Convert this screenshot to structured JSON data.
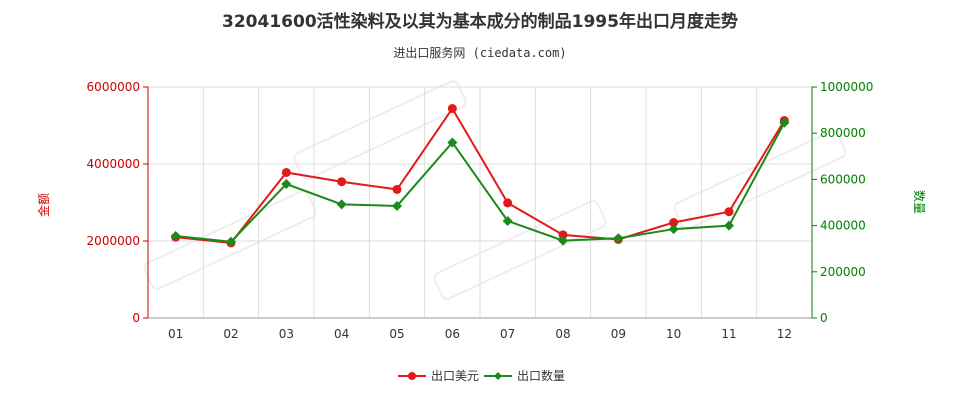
{
  "chart_data": {
    "type": "line",
    "title": "32041600活性染料及以其为基本成分的制品1995年出口月度走势",
    "subtitle": "进出口服务网 (ciedata.com)",
    "categories": [
      "01",
      "02",
      "03",
      "04",
      "05",
      "06",
      "07",
      "08",
      "09",
      "10",
      "11",
      "12"
    ],
    "y_left": {
      "label": "金额",
      "range": [
        0,
        6000000
      ],
      "ticks": [
        "0",
        "2000000",
        "4000000",
        "6000000"
      ]
    },
    "y_right": {
      "label": "数量",
      "range": [
        0,
        1000000
      ],
      "ticks": [
        "0",
        "200000",
        "400000",
        "600000",
        "800000",
        "1000000"
      ]
    },
    "series": [
      {
        "name": "出口美元",
        "axis": "left",
        "color": "#e31a1c",
        "values": [
          2100000,
          1950000,
          3780000,
          3540000,
          3340000,
          5440000,
          2990000,
          2160000,
          2040000,
          2480000,
          2760000,
          5130000
        ]
      },
      {
        "name": "出口数量",
        "axis": "right",
        "color": "#1a8a1a",
        "values": [
          355000,
          330000,
          580000,
          492000,
          485000,
          760000,
          420000,
          335000,
          345000,
          385000,
          400000,
          845000
        ]
      }
    ],
    "grid": true,
    "legend_position": "bottom-center"
  },
  "colors": {
    "left_axis": "#cc0000",
    "right_axis": "#008000",
    "grid": "#dddddd"
  }
}
